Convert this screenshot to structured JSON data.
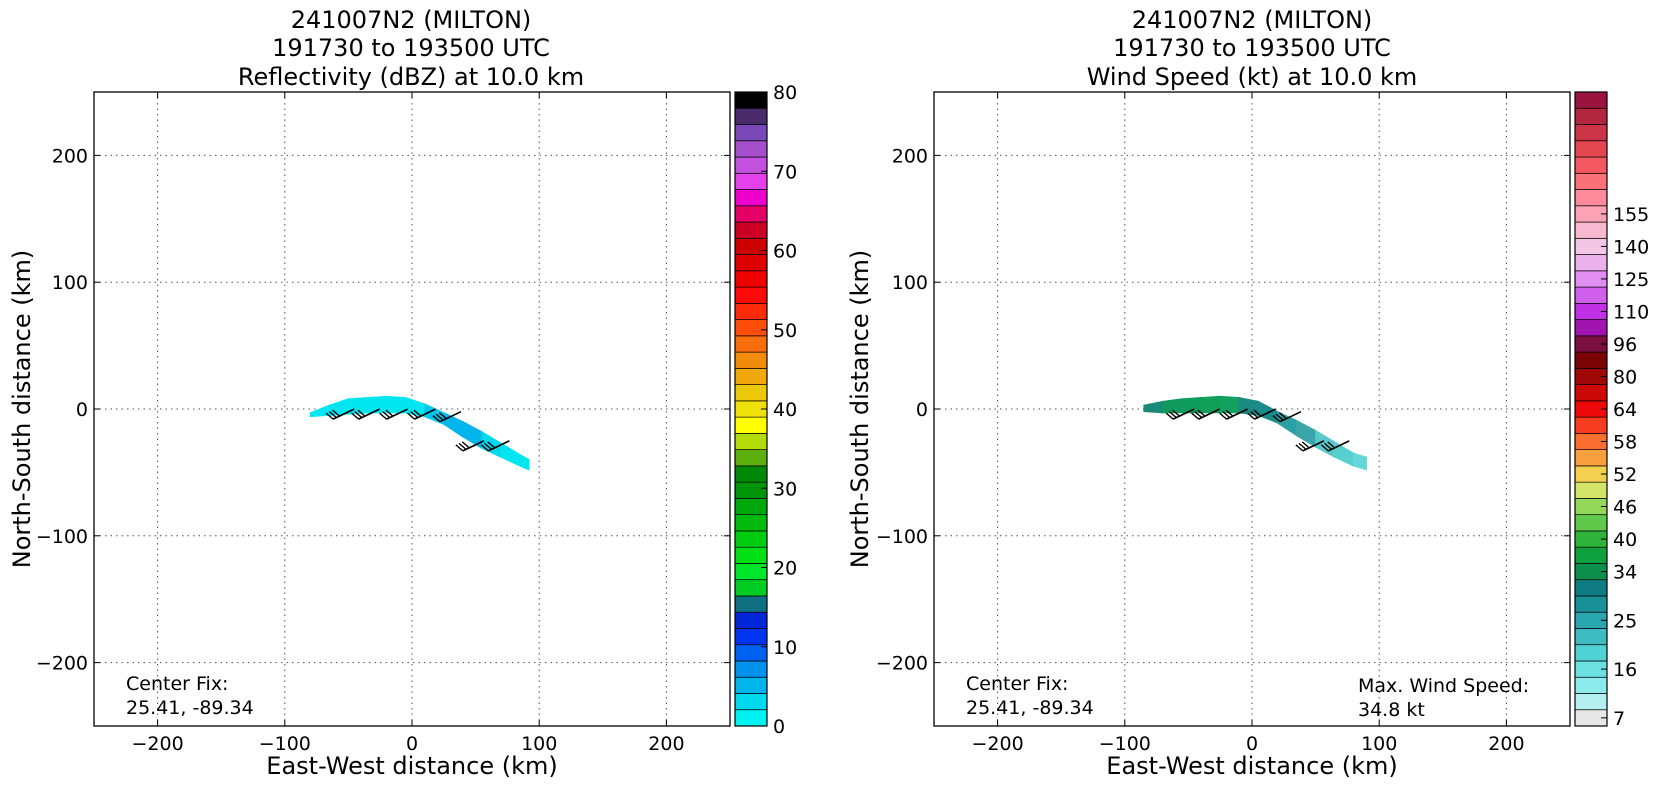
{
  "chart_data": [
    {
      "type": "heatmap",
      "title_lines": [
        "241007N2 (MILTON)",
        "191730 to 193500 UTC",
        "Reflectivity (dBZ) at 10.0 km"
      ],
      "xlabel": "East-West distance (km)",
      "ylabel": "North-South distance (km)",
      "xlim": [
        -250,
        250
      ],
      "ylim": [
        -250,
        250
      ],
      "xticks": [
        -200,
        -100,
        0,
        100,
        200
      ],
      "yticks": [
        -200,
        -100,
        0,
        100,
        200
      ],
      "xtick_labels": [
        "−200",
        "−100",
        "0",
        "100",
        "200"
      ],
      "ytick_labels": [
        "−200",
        "−100",
        "0",
        "100",
        "200"
      ],
      "grid": true,
      "annotation_lines": [
        "Center Fix:",
        "25.41, -89.34"
      ],
      "field_band": {
        "x_km": [
          -80,
          -65,
          -50,
          -35,
          -20,
          -5,
          10,
          25,
          40,
          55,
          70,
          85,
          92
        ],
        "y_top_km": [
          -3,
          3,
          8,
          9,
          10,
          9,
          4,
          -3,
          -10,
          -18,
          -27,
          -36,
          -40
        ],
        "y_bottom_km": [
          -6,
          -5,
          -4,
          -3,
          -3,
          -3,
          -6,
          -12,
          -22,
          -31,
          -38,
          -45,
          -48
        ],
        "colors": [
          "#00e6f0",
          "#00e6f0",
          "#00e6f0",
          "#00e6f0",
          "#00e6f0",
          "#00e6f0",
          "#00c8ec",
          "#00b4ec",
          "#00b4ec",
          "#00d8ee",
          "#00e6f0",
          "#00e6f0",
          "#00e6f0"
        ]
      },
      "wind_barbs": [
        {
          "x_km": -62,
          "y_km": -8
        },
        {
          "x_km": -42,
          "y_km": -8
        },
        {
          "x_km": -20,
          "y_km": -8
        },
        {
          "x_km": 2,
          "y_km": -8
        },
        {
          "x_km": 22,
          "y_km": -10
        },
        {
          "x_km": 40,
          "y_km": -33
        },
        {
          "x_km": 60,
          "y_km": -33
        }
      ],
      "colorbar": {
        "min": 0,
        "max": 80,
        "tick_values": [
          0,
          10,
          20,
          30,
          40,
          50,
          60,
          70,
          80
        ],
        "tick_labels": [
          "0",
          "10",
          "20",
          "30",
          "40",
          "50",
          "60",
          "70",
          "80"
        ],
        "colors": [
          "#00f2f2",
          "#00d8ee",
          "#00b4ec",
          "#0092ec",
          "#0062f0",
          "#0034f0",
          "#0026d8",
          "#0e7080",
          "#00cc22",
          "#00e62a",
          "#00e014",
          "#00cc10",
          "#00bb0e",
          "#00a80c",
          "#009408",
          "#008808",
          "#5cb00e",
          "#b4dc0a",
          "#ffff00",
          "#f0e00a",
          "#ecc80a",
          "#f0a80a",
          "#f08c0a",
          "#f86e0a",
          "#ff4e0a",
          "#ff2a0a",
          "#ff0a0a",
          "#ee0000",
          "#dc0000",
          "#cc0000",
          "#cc0022",
          "#e40066",
          "#ee00cc",
          "#e440ec",
          "#c450e0",
          "#a450cc",
          "#7a48b8",
          "#4a2a6a",
          "#000000"
        ]
      }
    },
    {
      "type": "heatmap",
      "title_lines": [
        "241007N2 (MILTON)",
        "191730 to 193500 UTC",
        "Wind Speed (kt) at 10.0 km"
      ],
      "xlabel": "East-West distance (km)",
      "ylabel": "North-South distance (km)",
      "xlim": [
        -250,
        250
      ],
      "ylim": [
        -250,
        250
      ],
      "xticks": [
        -200,
        -100,
        0,
        100,
        200
      ],
      "yticks": [
        -200,
        -100,
        0,
        100,
        200
      ],
      "xtick_labels": [
        "−200",
        "−100",
        "0",
        "100",
        "200"
      ],
      "ytick_labels": [
        "−200",
        "−100",
        "0",
        "100",
        "200"
      ],
      "grid": true,
      "annotation_lines": [
        "Center Fix:",
        "25.41, -89.34"
      ],
      "max_wind_lines": [
        "Max. Wind Speed:",
        "34.8 kt"
      ],
      "field_band": {
        "x_km": [
          -85,
          -70,
          -55,
          -40,
          -25,
          -10,
          5,
          20,
          35,
          50,
          65,
          80,
          90
        ],
        "y_top_km": [
          3,
          6,
          8,
          9,
          10,
          9,
          6,
          -2,
          -9,
          -17,
          -26,
          -35,
          -38
        ],
        "y_bottom_km": [
          -2,
          -3,
          -3,
          -3,
          -3,
          -3,
          -5,
          -11,
          -21,
          -30,
          -38,
          -45,
          -48
        ],
        "colors": [
          "#1a8a78",
          "#0f9a5e",
          "#0f9a5e",
          "#10a058",
          "#14a060",
          "#1a8a82",
          "#1a8a8e",
          "#2aa0a4",
          "#3aa6aa",
          "#58c8ca",
          "#58d0d0",
          "#64d8d8",
          "#64d8d8"
        ]
      },
      "wind_barbs": [
        {
          "x_km": -62,
          "y_km": -8
        },
        {
          "x_km": -42,
          "y_km": -8
        },
        {
          "x_km": -20,
          "y_km": -8
        },
        {
          "x_km": 2,
          "y_km": -8
        },
        {
          "x_km": 22,
          "y_km": -10
        },
        {
          "x_km": 40,
          "y_km": -33
        },
        {
          "x_km": 60,
          "y_km": -33
        }
      ],
      "colorbar": {
        "tick_labels": [
          "7",
          "16",
          "25",
          "34",
          "40",
          "46",
          "52",
          "58",
          "64",
          "80",
          "96",
          "110",
          "125",
          "140",
          "155"
        ],
        "tick_bins": [
          0,
          3,
          6,
          9,
          11,
          13,
          15,
          17,
          19,
          21,
          23,
          25,
          27,
          29,
          31
        ],
        "colors": [
          "#e8e8e8",
          "#b4f0f0",
          "#8ceaea",
          "#6ce0e0",
          "#50d2d4",
          "#3cbcc0",
          "#2aa6ae",
          "#1a9098",
          "#107c84",
          "#0c8e4c",
          "#0ea03c",
          "#2eb43a",
          "#60c84a",
          "#94d85a",
          "#d4e468",
          "#f4d050",
          "#f8a040",
          "#fa6e30",
          "#f83c20",
          "#ee0a0a",
          "#cc0808",
          "#a00808",
          "#7a0404",
          "#7a1040",
          "#a014b0",
          "#c030e4",
          "#d060ec",
          "#e08ef0",
          "#ecb2ee",
          "#f4c6e6",
          "#f8b8d0",
          "#fca2b6",
          "#fc8a9a",
          "#fc7078",
          "#f45860",
          "#e44650",
          "#cc3448",
          "#b42640",
          "#9a1440"
        ]
      }
    }
  ]
}
